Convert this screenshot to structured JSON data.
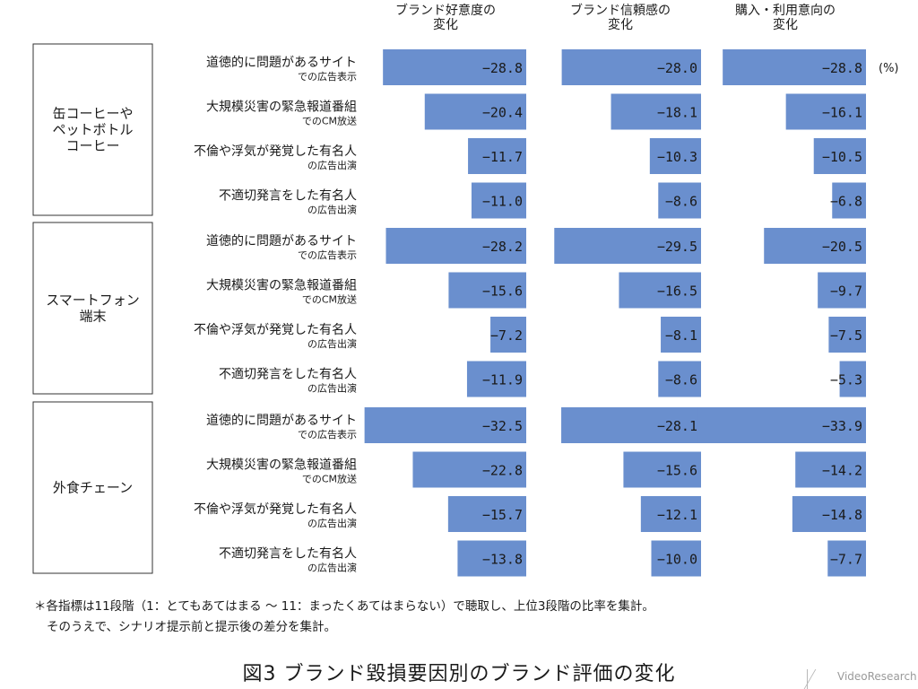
{
  "chart_data": {
    "type": "bar",
    "title": "図3 ブランド毀損要因別のブランド評価の変化",
    "unit": "(%)",
    "columns": [
      "ブランド好意度の\n変化",
      "ブランド信頼感の\n変化",
      "購入・利用意向の\n変化"
    ],
    "rows": [
      {
        "main": "道徳的に問題があるサイト",
        "sub": "での広告表示"
      },
      {
        "main": "大規模災害の緊急報道番組",
        "sub": "でのCM放送"
      },
      {
        "main": "不倫や浮気が発覚した有名人",
        "sub": "の広告出演"
      },
      {
        "main": "不適切発言をした有名人",
        "sub": "の広告出演"
      }
    ],
    "groups": [
      {
        "name": "缶コーヒーや\nペットボトル\nコーヒー",
        "values": [
          [
            -28.8,
            -28.0,
            -28.8
          ],
          [
            -20.4,
            -18.1,
            -16.1
          ],
          [
            -11.7,
            -10.3,
            -10.5
          ],
          [
            -11.0,
            -8.6,
            -6.8
          ]
        ]
      },
      {
        "name": "スマートフォン\n端末",
        "values": [
          [
            -28.2,
            -29.5,
            -20.5
          ],
          [
            -15.6,
            -16.5,
            -9.7
          ],
          [
            -7.2,
            -8.1,
            -7.5
          ],
          [
            -11.9,
            -8.6,
            -5.3
          ]
        ]
      },
      {
        "name": "外食チェーン",
        "values": [
          [
            -32.5,
            -28.1,
            -33.9
          ],
          [
            -22.8,
            -15.6,
            -14.2
          ],
          [
            -15.7,
            -12.1,
            -14.8
          ],
          [
            -13.8,
            -10.0,
            -7.7
          ]
        ]
      }
    ],
    "colors": {
      "bar": "#6a8fce"
    }
  },
  "notes": [
    "＊各指標は11段階（1：とてもあてはまる ～ 11：まったくあてはまらない）で聴取し、上位3段階の比率を集計。",
    "そのうえで、シナリオ提示前と提示後の差分を集計。"
  ],
  "logo": {
    "text": "VideoResearch"
  }
}
